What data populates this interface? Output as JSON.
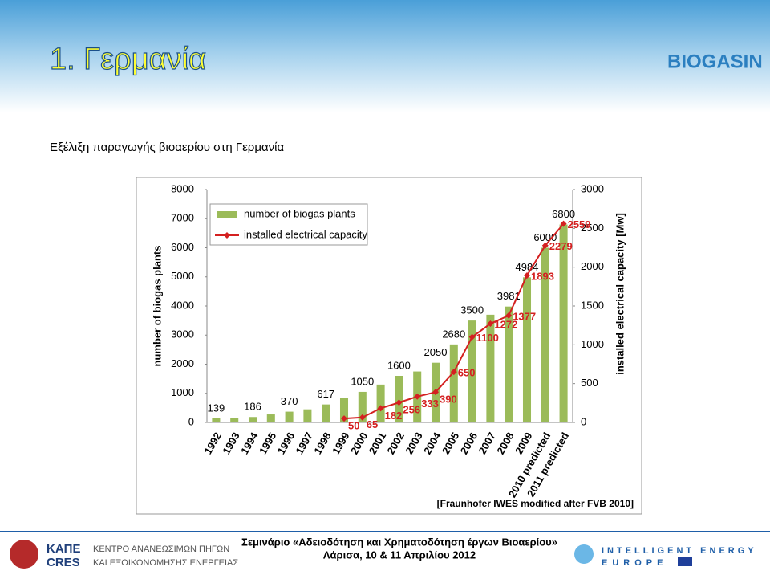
{
  "slide": {
    "title": "1. Γερμανία",
    "subtitle": "Εξέλιξη παραγωγής βιοαερίου στη Γερμανία",
    "logo": "BIOGASIN",
    "source": "[Fraunhofer IWES modified after FVB 2010]",
    "footer": {
      "org_short_1": "ΚΑΠΕ",
      "org_short_2": "CRES",
      "org_line_1": "ΚΕΝΤΡΟ ΑΝΑΝΕΩΣΙΜΩΝ ΠΗΓΩΝ",
      "org_line_2": "ΚΑΙ ΕΞΟΙΚΟΝΟΜΗΣΗΣ ΕΝΕΡΓΕΙΑΣ",
      "event": "Σεμινάριο «Αδειοδότηση και Χρηματοδότηση έργων Βιοαερίου»",
      "place": "Λάρισα, 10 & 11 Απριλίου 2012",
      "programme_1": "INTELLIGENT ENERGY",
      "programme_2": "EUROPE"
    }
  },
  "chart_data": {
    "type": "bar",
    "categories": [
      "1992",
      "1993",
      "1994",
      "1995",
      "1996",
      "1997",
      "1998",
      "1999",
      "2000",
      "2001",
      "2002",
      "2003",
      "2004",
      "2005",
      "2006",
      "2007",
      "2008",
      "2009",
      "2010 predicted",
      "2011 predicted"
    ],
    "ylabel": "number of biogas plants",
    "y2label": "installed electrical capacity [Mw]",
    "ylim": [
      0,
      8000
    ],
    "yticks": [
      0,
      1000,
      2000,
      3000,
      4000,
      5000,
      6000,
      7000,
      8000
    ],
    "y2lim": [
      0,
      3000
    ],
    "y2ticks": [
      0,
      500,
      1000,
      1500,
      2000,
      2500,
      3000
    ],
    "grid": false,
    "legend": "upper left",
    "series": [
      {
        "name": "number of biogas plants",
        "type": "bar",
        "color": "#9bbb59",
        "values": [
          139,
          165,
          186,
          275,
          370,
          450,
          617,
          840,
          1050,
          1300,
          1600,
          1750,
          2050,
          2680,
          3500,
          3700,
          3981,
          4984,
          6000,
          6800
        ],
        "value_labels": [
          "139",
          null,
          "186",
          null,
          "370",
          null,
          "617",
          null,
          "1050",
          null,
          "1600",
          null,
          "2050",
          "2680",
          "3500",
          null,
          "3981",
          "4984",
          "6000",
          "6800"
        ]
      },
      {
        "name": "installed electrical capacity",
        "type": "line",
        "axis": "y2",
        "color": "#d42020",
        "values": [
          null,
          null,
          null,
          null,
          null,
          null,
          null,
          50,
          65,
          182,
          256,
          333,
          390,
          650,
          1100,
          1272,
          1377,
          1893,
          2279,
          2559
        ],
        "value_labels": [
          null,
          null,
          null,
          null,
          null,
          null,
          null,
          "50",
          "65",
          "182",
          "256",
          "333",
          "390",
          "650",
          "1100",
          "1272",
          "1377",
          "1893",
          "2279",
          "2559"
        ]
      }
    ]
  }
}
